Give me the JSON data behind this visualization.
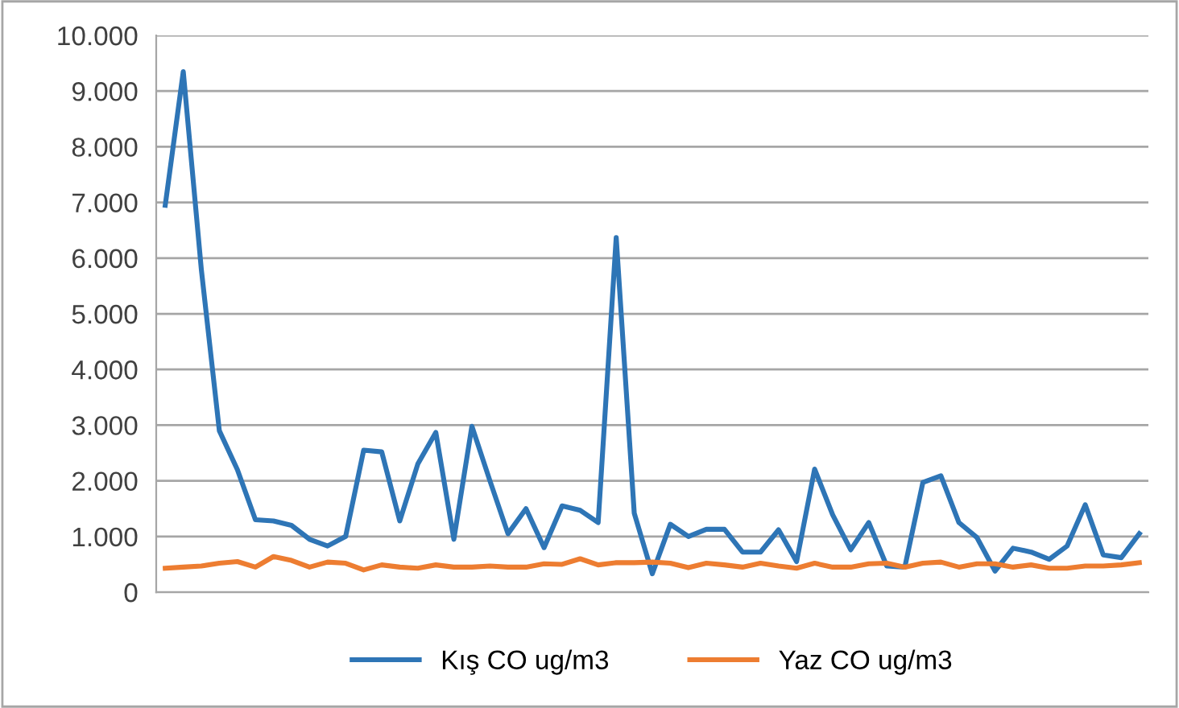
{
  "chart_data": {
    "type": "line",
    "categories": [
      null,
      null,
      null,
      null,
      null,
      null,
      null,
      null,
      null,
      null,
      null,
      null,
      null,
      null,
      null,
      null,
      null,
      null,
      null,
      null,
      null,
      null,
      null,
      null,
      null,
      null,
      null,
      null,
      null,
      null,
      null,
      null,
      null,
      null,
      null,
      null,
      null,
      null,
      null,
      null,
      null,
      null,
      null,
      null,
      null,
      null,
      null,
      null,
      null,
      null,
      null,
      null,
      null,
      null,
      null
    ],
    "series": [
      {
        "name": "Kış CO ug/m3",
        "color": "#2e75b6",
        "values": [
          6950,
          9350,
          5800,
          2900,
          2200,
          1300,
          1280,
          1200,
          950,
          830,
          1000,
          2550,
          2520,
          1280,
          2300,
          2870,
          950,
          2980,
          2000,
          1050,
          1500,
          800,
          1550,
          1470,
          1250,
          6370,
          1420,
          330,
          1220,
          1000,
          1130,
          1130,
          720,
          720,
          1120,
          550,
          2210,
          1390,
          760,
          1250,
          470,
          450,
          1970,
          2090,
          1250,
          980,
          380,
          790,
          720,
          590,
          830,
          1570,
          670,
          620,
          1050
        ]
      },
      {
        "name": "Yaz CO ug/m3",
        "color": "#ed7d31",
        "values": [
          430,
          450,
          470,
          520,
          550,
          450,
          640,
          570,
          450,
          540,
          520,
          400,
          490,
          450,
          430,
          490,
          450,
          450,
          470,
          450,
          450,
          510,
          500,
          600,
          490,
          530,
          530,
          540,
          520,
          440,
          520,
          490,
          450,
          520,
          470,
          430,
          520,
          450,
          450,
          510,
          520,
          450,
          520,
          540,
          450,
          510,
          510,
          450,
          490,
          430,
          430,
          470,
          470,
          490,
          530
        ]
      }
    ],
    "ylim": [
      0,
      10000
    ],
    "yticks": [
      {
        "value": 0,
        "label": "0"
      },
      {
        "value": 1000,
        "label": "1.000"
      },
      {
        "value": 2000,
        "label": "2.000"
      },
      {
        "value": 3000,
        "label": "3.000"
      },
      {
        "value": 4000,
        "label": "4.000"
      },
      {
        "value": 5000,
        "label": "5.000"
      },
      {
        "value": 6000,
        "label": "6.000"
      },
      {
        "value": 7000,
        "label": "7.000"
      },
      {
        "value": 8000,
        "label": "8.000"
      },
      {
        "value": 9000,
        "label": "9.000"
      },
      {
        "value": 10000,
        "label": "10.000"
      }
    ],
    "grid": "y",
    "legend": "bottom",
    "marker": "none",
    "line_style": "solid"
  }
}
